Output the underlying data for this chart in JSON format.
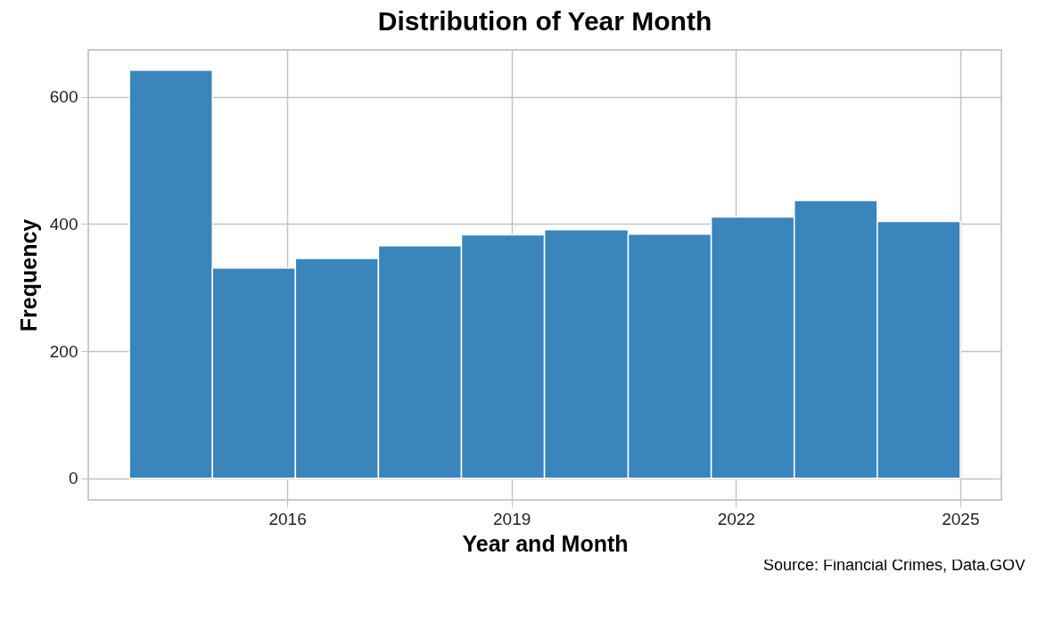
{
  "chart_data": {
    "type": "histogram",
    "title": "Distribution of Year Month",
    "xlabel": "Year and Month",
    "ylabel": "Frequency",
    "bins": [
      2013.89,
      2015.0,
      2016.11,
      2017.22,
      2018.33,
      2019.44,
      2020.56,
      2021.67,
      2022.78,
      2023.89,
      2025.0
    ],
    "values": [
      642,
      331,
      346,
      366,
      383,
      391,
      384,
      411,
      437,
      404
    ],
    "color": "#3783ba",
    "xlim": [
      2013.34,
      2025.55
    ],
    "xticks": [
      2016,
      2019,
      2022,
      2025
    ],
    "ylim": [
      -34,
      674
    ],
    "yticks": [
      0,
      200,
      400,
      600
    ],
    "grid": true,
    "annotations": [
      "Source: Financial Crimes, Data.GOV"
    ]
  }
}
